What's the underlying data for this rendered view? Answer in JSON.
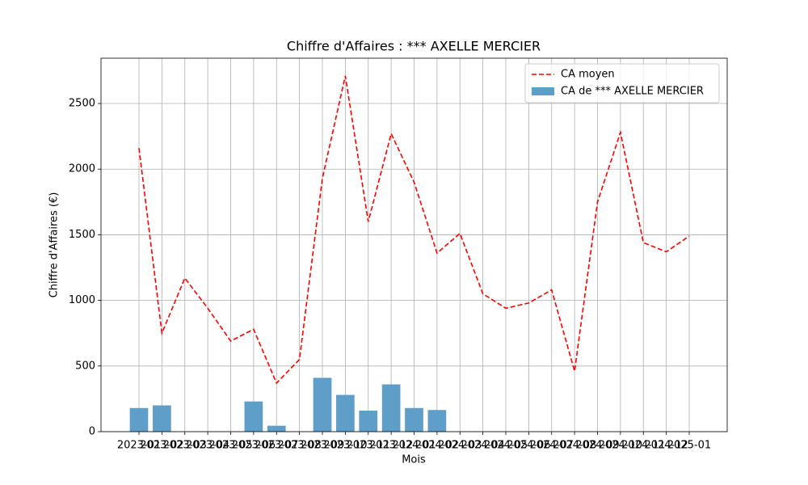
{
  "chart_data": {
    "type": "bar_line",
    "title": "Chiffre d'Affaires : *** AXELLE MERCIER",
    "xlabel": "Mois",
    "ylabel": "Chiffre d'Affaires (€)",
    "categories": [
      "2023-01",
      "2023-02",
      "2023-03",
      "2023-04",
      "2023-05",
      "2023-06",
      "2023-07",
      "2023-08",
      "2023-09",
      "2023-10",
      "2023-11",
      "2023-12",
      "2024-01",
      "2024-02",
      "2024-03",
      "2024-04",
      "2024-05",
      "2024-06",
      "2024-07",
      "2024-08",
      "2024-09",
      "2024-10",
      "2024-11",
      "2024-12",
      "2025-01"
    ],
    "series": [
      {
        "name": "CA moyen",
        "type": "line",
        "color": "#ff0000",
        "values": [
          2160,
          750,
          1170,
          940,
          690,
          780,
          370,
          550,
          1930,
          2710,
          1600,
          2270,
          1900,
          1360,
          1510,
          1050,
          940,
          980,
          1080,
          460,
          1750,
          2280,
          1440,
          1370,
          1490
        ]
      },
      {
        "name": "CA de *** AXELLE MERCIER",
        "type": "bar",
        "color": "#5f9ec9",
        "values": [
          180,
          200,
          null,
          null,
          null,
          230,
          45,
          null,
          410,
          280,
          160,
          360,
          180,
          165,
          null,
          null,
          null,
          null,
          null,
          null,
          null,
          null,
          null,
          null,
          null
        ]
      }
    ],
    "ylim": [
      0,
      2845
    ],
    "yticks": [
      0,
      500,
      1000,
      1500,
      2000,
      2500
    ],
    "grid": true,
    "legend": "upper right"
  }
}
